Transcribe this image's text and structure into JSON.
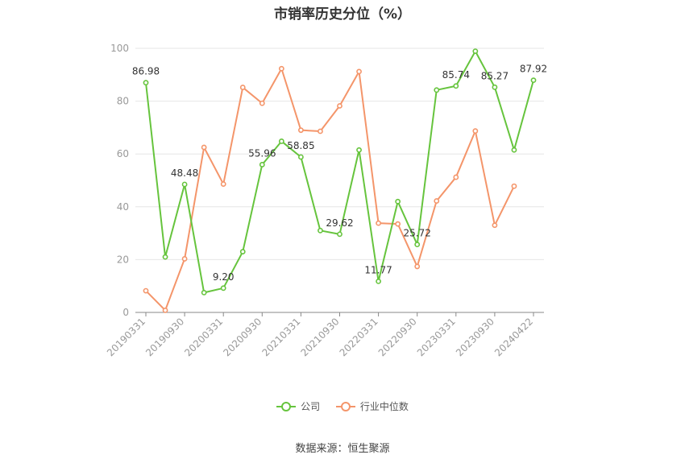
{
  "chart_data": {
    "type": "line",
    "title": "市销率历史分位（%）",
    "ylim": [
      0,
      100
    ],
    "yticks": [
      0,
      20,
      40,
      60,
      80,
      100
    ],
    "grid": true,
    "legend_position": "bottom",
    "x": [
      "20190331",
      "20190630",
      "20190930",
      "20191231",
      "20200331",
      "20200630",
      "20200930",
      "20201231",
      "20210331",
      "20210630",
      "20210930",
      "20211231",
      "20220331",
      "20220630",
      "20220930",
      "20221231",
      "20230331",
      "20230630",
      "20230930",
      "20231231",
      "20240422"
    ],
    "xtick_labels": [
      "20190331",
      "20190930",
      "20200331",
      "20200930",
      "20210331",
      "20210930",
      "20220331",
      "20220930",
      "20230331",
      "20230930",
      "20240422"
    ],
    "series": [
      {
        "name": "公司",
        "color": "#66c43d",
        "values": [
          86.98,
          21.0,
          48.48,
          7.5,
          9.2,
          23.0,
          55.96,
          64.8,
          58.85,
          31.0,
          29.62,
          61.5,
          11.77,
          42.0,
          25.72,
          84.2,
          85.74,
          98.9,
          85.27,
          61.5,
          87.92
        ],
        "labels": {
          "0": "86.98",
          "2": "48.48",
          "4": "9.20",
          "6": "55.96",
          "8": "58.85",
          "10": "29.62",
          "12": "11.77",
          "14": "25.72",
          "16": "85.74",
          "18": "85.27",
          "20": "87.92"
        }
      },
      {
        "name": "行业中位数",
        "color": "#f4956a",
        "values": [
          8.2,
          0.8,
          20.3,
          62.5,
          48.6,
          85.2,
          79.2,
          92.3,
          69.0,
          68.6,
          78.2,
          91.2,
          33.8,
          33.5,
          17.4,
          42.2,
          51.2,
          68.7,
          33.0,
          47.8,
          null
        ]
      }
    ]
  },
  "source": "数据来源：恒生聚源"
}
